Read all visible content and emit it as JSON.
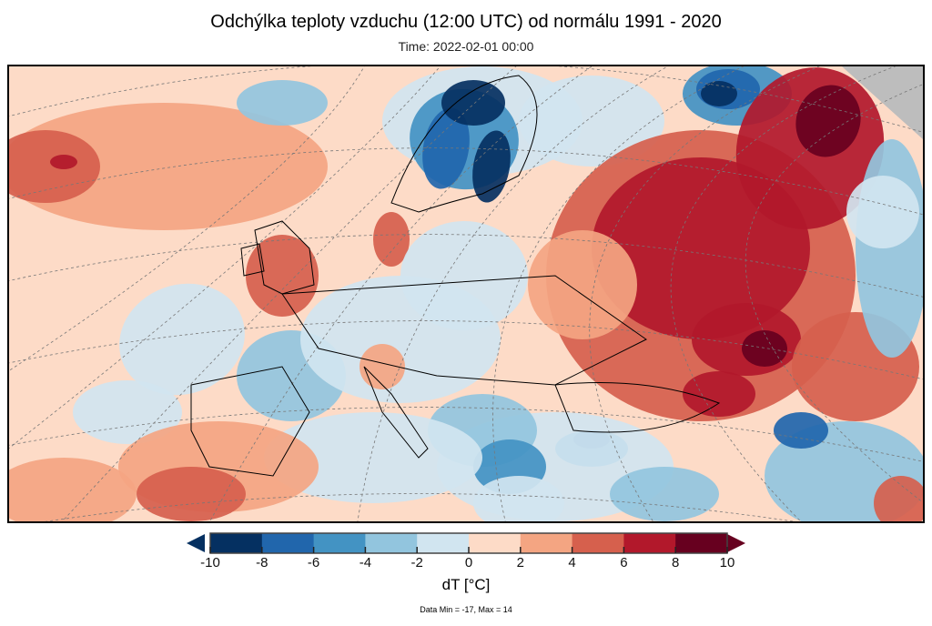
{
  "title": "Odchýlka teploty vzduchu (12:00 UTC) od normálu 1991 - 2020",
  "subtitle": "Time: 2022-02-01 00:00",
  "colorbar": {
    "label": "dT [°C]",
    "ticks": [
      "-10",
      "-8",
      "-6",
      "-4",
      "-2",
      "0",
      "2",
      "4",
      "6",
      "8",
      "10"
    ],
    "levels": [
      -10,
      -8,
      -6,
      -4,
      -2,
      0,
      2,
      4,
      6,
      8,
      10
    ],
    "colors": [
      "#053061",
      "#2166ac",
      "#4393c3",
      "#92c5de",
      "#d1e5f0",
      "#fddbc7",
      "#f4a582",
      "#d6604d",
      "#b2182b",
      "#67001f"
    ],
    "under_color": "#053061",
    "over_color": "#67001f"
  },
  "footer": "Data Min = -17, Max = 14",
  "no_data_color": "#bdbdbd"
}
